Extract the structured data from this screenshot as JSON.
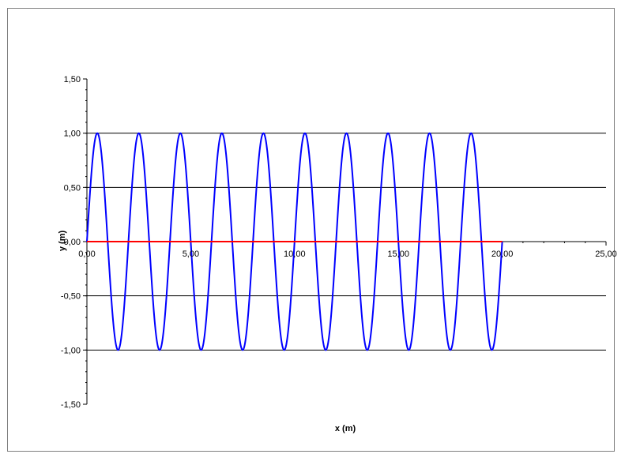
{
  "chart_data": {
    "type": "line",
    "title": "",
    "xlabel": "x (m)",
    "ylabel": "y (m)",
    "xlim": [
      0,
      25
    ],
    "ylim": [
      -1.5,
      1.5
    ],
    "x_tick_labels": [
      "0,00",
      "5,00",
      "10,00",
      "15,00",
      "20,00",
      "25,00"
    ],
    "y_tick_labels": [
      "1,50",
      "1,00",
      "0,50",
      "0,00",
      "-0,50",
      "-1,00",
      "-1,50"
    ],
    "grid": "horizontal major gridlines",
    "legend": "none",
    "series": [
      {
        "color": "#0000ff",
        "function": "y = sin(2*pi*x/2)",
        "amplitude": 1,
        "wavelength": 2,
        "x_range": [
          0,
          20
        ]
      },
      {
        "color": "#ff0000",
        "x": [
          0,
          20
        ],
        "y": [
          0,
          0
        ]
      }
    ]
  }
}
